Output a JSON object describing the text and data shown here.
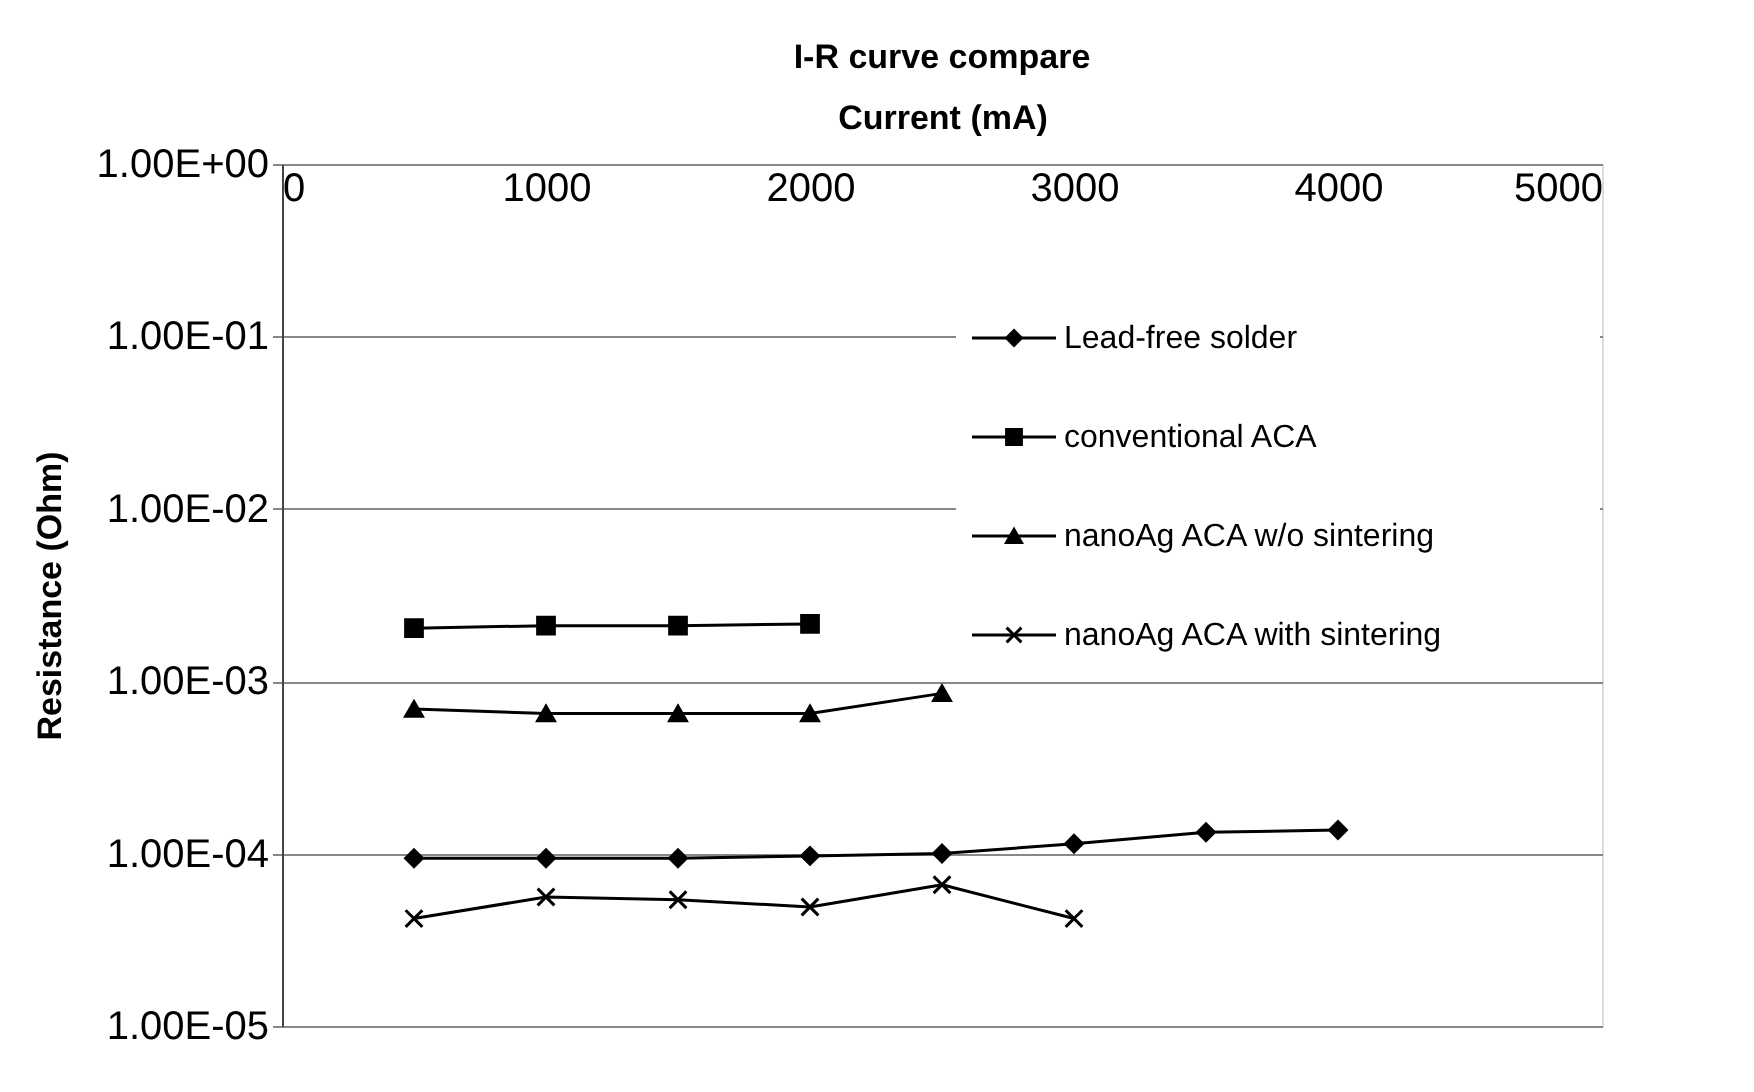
{
  "chart_data": {
    "type": "line",
    "title": "I-R curve compare",
    "xlabel": "Current (mA)",
    "ylabel": "Resistance (Ohm)",
    "xlim": [
      0,
      5000
    ],
    "xticks": [
      {
        "value": 0,
        "label": "0"
      },
      {
        "value": 1000,
        "label": "1000"
      },
      {
        "value": 2000,
        "label": "2000"
      },
      {
        "value": 3000,
        "label": "3000"
      },
      {
        "value": 4000,
        "label": "4000"
      },
      {
        "value": 5000,
        "label": "5000"
      }
    ],
    "ylim": [
      1e-05,
      1
    ],
    "log": "y",
    "yticks": [
      {
        "value": 1,
        "label": "1.00E+00"
      },
      {
        "value": 0.1,
        "label": "1.00E-01"
      },
      {
        "value": 0.01,
        "label": "1.00E-02"
      },
      {
        "value": 0.001,
        "label": "1.00E-03"
      },
      {
        "value": 0.0001,
        "label": "1.00E-04"
      },
      {
        "value": 1e-05,
        "label": "1.00E-05"
      }
    ],
    "grid": "y",
    "legend": "right",
    "series": [
      {
        "name": "Lead-free solder",
        "color": "#000000",
        "marker": "diamond",
        "x": [
          500,
          1000,
          1500,
          2000,
          2500,
          3000,
          3500,
          4000
        ],
        "values": [
          9.4e-05,
          9.4e-05,
          9.4e-05,
          9.7e-05,
          0.0001,
          0.000114,
          0.000133,
          0.000137
        ]
      },
      {
        "name": "conventional ACA",
        "color": "#000000",
        "marker": "square",
        "x": [
          500,
          1000,
          1500,
          2000
        ],
        "values": [
          0.00203,
          0.0021,
          0.0021,
          0.00215
        ]
      },
      {
        "name": "nanoAg ACA w/o sintering",
        "color": "#000000",
        "marker": "triangle",
        "x": [
          500,
          1000,
          1500,
          2000,
          2500
        ],
        "values": [
          0.00069,
          0.00065,
          0.00065,
          0.00065,
          0.00085
        ]
      },
      {
        "name": "nanoAg ACA with sintering",
        "color": "#000000",
        "marker": "cross",
        "x": [
          500,
          1000,
          1500,
          2000,
          2500,
          3000
        ],
        "values": [
          4.2e-05,
          5.6e-05,
          5.4e-05,
          4.9e-05,
          6.6e-05,
          4.2e-05
        ]
      }
    ]
  }
}
